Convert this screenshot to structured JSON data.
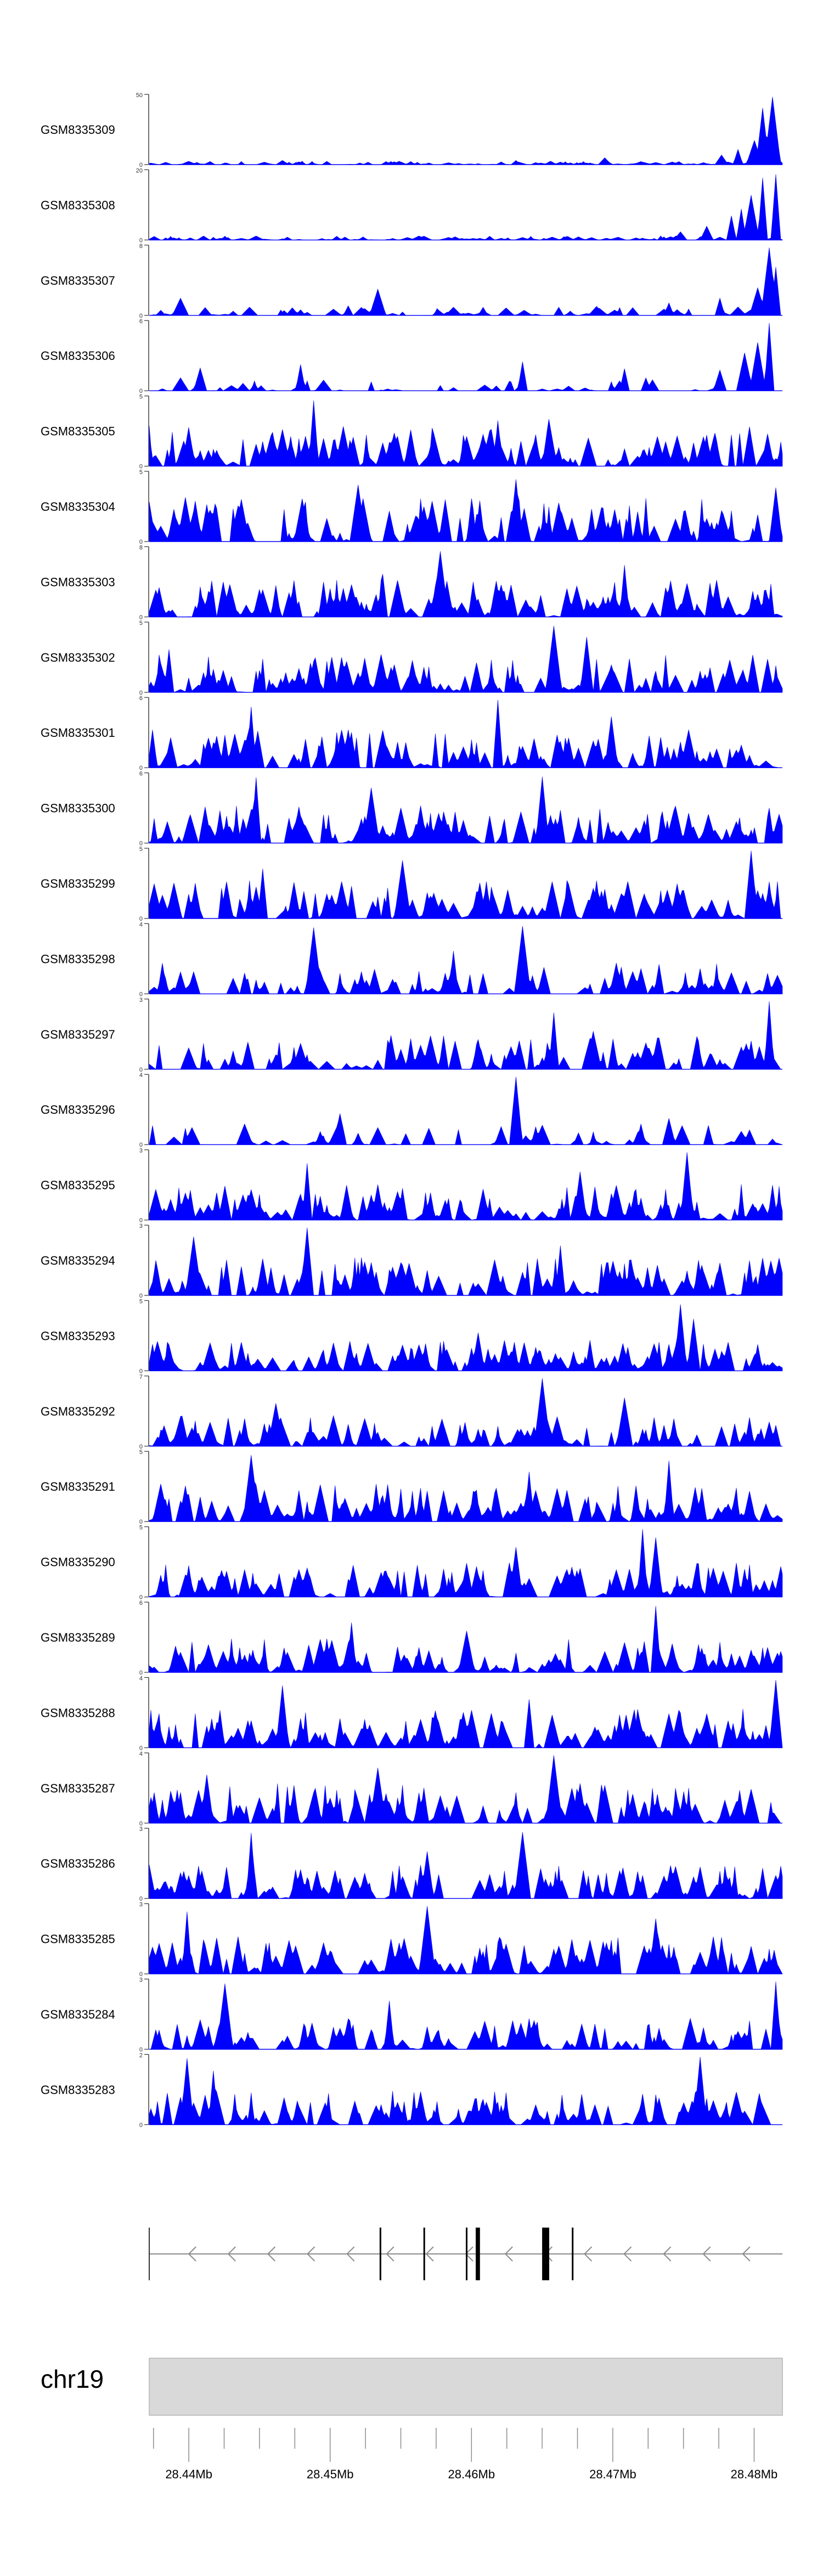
{
  "chart_data": {
    "type": "area",
    "colors": {
      "fill": "#0000ff",
      "axis": "#333333",
      "gene": "#000000",
      "ideogram": "#d9d9d9"
    },
    "x_range": [
      28437200,
      28482000
    ],
    "tracks": [
      {
        "label": "GSM8335309",
        "ymax": 50,
        "ymin": 0,
        "peaks": [
          [
            0.97,
            0.82
          ],
          [
            0.985,
            0.98
          ],
          [
            0.955,
            0.35
          ],
          [
            0.93,
            0.22
          ],
          [
            0.905,
            0.14
          ],
          [
            0.72,
            0.1
          ],
          [
            0.58,
            0.06
          ],
          [
            0.21,
            0.06
          ]
        ],
        "noise": 0.05,
        "density": 1.3
      },
      {
        "label": "GSM8335308",
        "ymax": 20,
        "ymin": 0,
        "peaks": [
          [
            0.97,
            0.9
          ],
          [
            0.99,
            0.95
          ],
          [
            0.95,
            0.65
          ],
          [
            0.92,
            0.35
          ],
          [
            0.935,
            0.45
          ],
          [
            0.88,
            0.2
          ],
          [
            0.84,
            0.12
          ]
        ],
        "noise": 0.06,
        "density": 1.3
      },
      {
        "label": "GSM8335307",
        "ymax": 8,
        "ymin": 0,
        "peaks": [
          [
            0.98,
            0.98
          ],
          [
            0.99,
            0.7
          ],
          [
            0.96,
            0.4
          ],
          [
            0.36,
            0.38
          ],
          [
            0.9,
            0.25
          ],
          [
            0.05,
            0.25
          ],
          [
            0.82,
            0.18
          ]
        ],
        "noise": 0.14,
        "density": 0.75
      },
      {
        "label": "GSM8335306",
        "ymax": 6,
        "ymin": 0,
        "peaks": [
          [
            0.98,
            0.98
          ],
          [
            0.96,
            0.7
          ],
          [
            0.94,
            0.55
          ],
          [
            0.59,
            0.42
          ],
          [
            0.08,
            0.33
          ],
          [
            0.24,
            0.38
          ],
          [
            0.9,
            0.3
          ],
          [
            0.75,
            0.32
          ]
        ],
        "noise": 0.2,
        "density": 0.55
      },
      {
        "label": "GSM8335305",
        "ymax": 5,
        "ymin": 0,
        "peaks": [
          [
            0.26,
            0.95
          ],
          [
            0.63,
            0.68
          ],
          [
            0.55,
            0.66
          ]
        ],
        "noise": 0.62,
        "density": 1.4
      },
      {
        "label": "GSM8335304",
        "ymax": 5,
        "ymin": 0,
        "peaks": [
          [
            0.58,
            0.9
          ],
          [
            0.33,
            0.82
          ],
          [
            0.99,
            0.78
          ]
        ],
        "noise": 0.65,
        "density": 1.4
      },
      {
        "label": "GSM8335303",
        "ymax": 8,
        "ymin": 0,
        "peaks": [
          [
            0.46,
            0.95
          ],
          [
            0.75,
            0.75
          ],
          [
            0.37,
            0.62
          ]
        ],
        "noise": 0.55,
        "density": 1.3
      },
      {
        "label": "GSM8335302",
        "ymax": 5,
        "ymin": 0,
        "peaks": [
          [
            0.64,
            0.96
          ],
          [
            0.69,
            0.8
          ],
          [
            0.03,
            0.62
          ]
        ],
        "noise": 0.55,
        "density": 1.4
      },
      {
        "label": "GSM8335301",
        "ymax": 6,
        "ymin": 0,
        "peaks": [
          [
            0.55,
            0.98
          ],
          [
            0.16,
            0.88
          ],
          [
            0.73,
            0.74
          ]
        ],
        "noise": 0.55,
        "density": 1.4
      },
      {
        "label": "GSM8335300",
        "ymax": 6,
        "ymin": 0,
        "peaks": [
          [
            0.17,
            0.95
          ],
          [
            0.62,
            0.96
          ],
          [
            0.35,
            0.8
          ]
        ],
        "noise": 0.55,
        "density": 1.4
      },
      {
        "label": "GSM8335299",
        "ymax": 5,
        "ymin": 0,
        "peaks": [
          [
            0.95,
            0.98
          ],
          [
            0.4,
            0.84
          ],
          [
            0.18,
            0.72
          ]
        ],
        "noise": 0.55,
        "density": 1.4
      },
      {
        "label": "GSM8335298",
        "ymax": 4,
        "ymin": 0,
        "peaks": [
          [
            0.26,
            0.96
          ],
          [
            0.59,
            0.98
          ],
          [
            0.48,
            0.62
          ]
        ],
        "noise": 0.45,
        "density": 0.9
      },
      {
        "label": "GSM8335297",
        "ymax": 3,
        "ymin": 0,
        "peaks": [
          [
            0.98,
            0.98
          ],
          [
            0.64,
            0.82
          ],
          [
            0.7,
            0.55
          ]
        ],
        "noise": 0.5,
        "density": 1.0
      },
      {
        "label": "GSM8335296",
        "ymax": 4,
        "ymin": 0,
        "peaks": [
          [
            0.58,
            0.98
          ],
          [
            0.3,
            0.45
          ],
          [
            0.82,
            0.38
          ]
        ],
        "noise": 0.3,
        "density": 0.55
      },
      {
        "label": "GSM8335295",
        "ymax": 3,
        "ymin": 0,
        "peaks": [
          [
            0.85,
            0.98
          ],
          [
            0.25,
            0.82
          ],
          [
            0.68,
            0.7
          ]
        ],
        "noise": 0.52,
        "density": 1.3
      },
      {
        "label": "GSM8335294",
        "ymax": 3,
        "ymin": 0,
        "peaks": [
          [
            0.25,
            0.98
          ],
          [
            0.07,
            0.85
          ],
          [
            0.65,
            0.72
          ]
        ],
        "noise": 0.55,
        "density": 1.4
      },
      {
        "label": "GSM8335293",
        "ymax": 5,
        "ymin": 0,
        "peaks": [
          [
            0.84,
            0.96
          ],
          [
            0.86,
            0.75
          ],
          [
            0.52,
            0.55
          ]
        ],
        "noise": 0.45,
        "density": 1.4
      },
      {
        "label": "GSM8335292",
        "ymax": 7,
        "ymin": 0,
        "peaks": [
          [
            0.62,
            0.98
          ],
          [
            0.75,
            0.7
          ],
          [
            0.2,
            0.62
          ]
        ],
        "noise": 0.45,
        "density": 1.4
      },
      {
        "label": "GSM8335291",
        "ymax": 5,
        "ymin": 0,
        "peaks": [
          [
            0.16,
            0.96
          ],
          [
            0.82,
            0.88
          ],
          [
            0.6,
            0.72
          ]
        ],
        "noise": 0.55,
        "density": 1.4
      },
      {
        "label": "GSM8335290",
        "ymax": 5,
        "ymin": 0,
        "peaks": [
          [
            0.78,
            0.98
          ],
          [
            0.8,
            0.86
          ],
          [
            0.58,
            0.72
          ]
        ],
        "noise": 0.5,
        "density": 1.4
      },
      {
        "label": "GSM8335289",
        "ymax": 6,
        "ymin": 0,
        "peaks": [
          [
            0.8,
            0.96
          ],
          [
            0.32,
            0.72
          ],
          [
            0.5,
            0.6
          ]
        ],
        "noise": 0.5,
        "density": 1.4
      },
      {
        "label": "GSM8335288",
        "ymax": 4,
        "ymin": 0,
        "peaks": [
          [
            0.99,
            0.98
          ],
          [
            0.21,
            0.9
          ],
          [
            0.6,
            0.7
          ]
        ],
        "noise": 0.58,
        "density": 1.4
      },
      {
        "label": "GSM8335287",
        "ymax": 4,
        "ymin": 0,
        "peaks": [
          [
            0.64,
            0.98
          ],
          [
            0.36,
            0.8
          ],
          [
            0.09,
            0.7
          ]
        ],
        "noise": 0.58,
        "density": 1.4
      },
      {
        "label": "GSM8335286",
        "ymax": 3,
        "ymin": 0,
        "peaks": [
          [
            0.16,
            0.95
          ],
          [
            0.59,
            0.96
          ],
          [
            0.44,
            0.68
          ]
        ],
        "noise": 0.5,
        "density": 1.3
      },
      {
        "label": "GSM8335285",
        "ymax": 3,
        "ymin": 0,
        "peaks": [
          [
            0.44,
            0.98
          ],
          [
            0.06,
            0.9
          ],
          [
            0.8,
            0.8
          ]
        ],
        "noise": 0.55,
        "density": 1.3
      },
      {
        "label": "GSM8335284",
        "ymax": 3,
        "ymin": 0,
        "peaks": [
          [
            0.99,
            0.98
          ],
          [
            0.12,
            0.95
          ],
          [
            0.38,
            0.7
          ]
        ],
        "noise": 0.45,
        "density": 1.2
      },
      {
        "label": "GSM8335283",
        "ymax": 2,
        "ymin": 0,
        "peaks": [
          [
            0.06,
            0.96
          ],
          [
            0.87,
            0.98
          ],
          [
            0.1,
            0.78
          ]
        ],
        "noise": 0.5,
        "density": 1.4
      }
    ],
    "gene_track": {
      "strand": "-",
      "start": 28437200,
      "end": 28482000,
      "exons": [
        [
          28453500,
          28453600
        ],
        [
          28456600,
          28456700
        ],
        [
          28459600,
          28459700
        ],
        [
          28460300,
          28460600
        ],
        [
          28465000,
          28465500
        ],
        [
          28467100,
          28467200
        ]
      ]
    },
    "ideogram": {
      "label": "chr19",
      "tick_step": 2500,
      "major_step": 10000,
      "tick_labels": [
        "28.44Mb",
        "28.45Mb",
        "28.46Mb",
        "28.47Mb",
        "28.48Mb"
      ],
      "tick_values": [
        28440000,
        28450000,
        28460000,
        28470000,
        28480000
      ]
    }
  }
}
